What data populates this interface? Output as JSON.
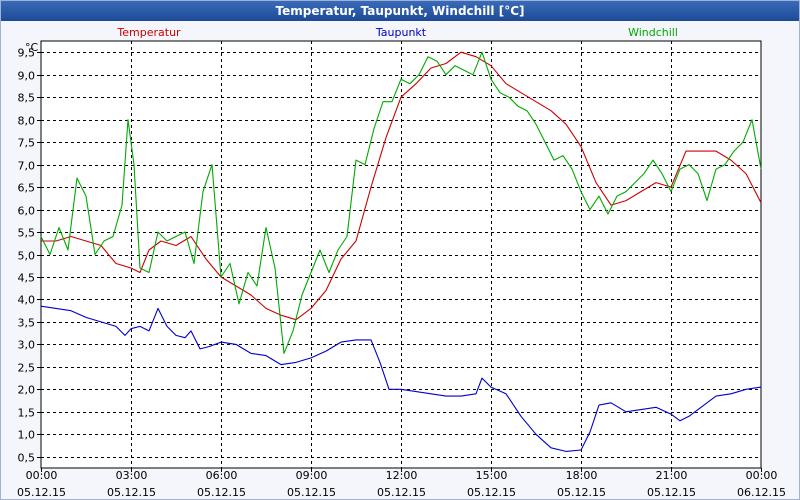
{
  "chart_data": {
    "type": "line",
    "title": "Temperatur, Taupunkt, Windchill [°C]",
    "ylabel": "°C",
    "ylim": [
      0.25,
      9.75
    ],
    "yticks": [
      0.5,
      1.0,
      1.5,
      2.0,
      2.5,
      3.0,
      3.5,
      4.0,
      4.5,
      5.0,
      5.5,
      6.0,
      6.5,
      7.0,
      7.5,
      8.0,
      8.5,
      9.0,
      9.5
    ],
    "ytick_labels": [
      "0,5",
      "1,0",
      "1,5",
      "2,0",
      "2,5",
      "3,0",
      "3,5",
      "4,0",
      "4,5",
      "5,0",
      "5,5",
      "6,0",
      "6,5",
      "7,0",
      "7,5",
      "8,0",
      "8,5",
      "9,0",
      "9,5"
    ],
    "xlim": [
      0,
      24
    ],
    "xticks": [
      0,
      3,
      6,
      9,
      12,
      15,
      18,
      21,
      24
    ],
    "xtick_labels": [
      {
        "time": "00:00",
        "date": "05.12.15"
      },
      {
        "time": "03:00",
        "date": "05.12.15"
      },
      {
        "time": "06:00",
        "date": "05.12.15"
      },
      {
        "time": "09:00",
        "date": "05.12.15"
      },
      {
        "time": "12:00",
        "date": "05.12.15"
      },
      {
        "time": "15:00",
        "date": "05.12.15"
      },
      {
        "time": "18:00",
        "date": "05.12.15"
      },
      {
        "time": "21:00",
        "date": "05.12.15"
      },
      {
        "time": "00:00",
        "date": "06.12.15"
      }
    ],
    "grid": true,
    "x_unit": "hours since 05.12.15 00:00",
    "series": [
      {
        "name": "Temperatur",
        "color": "#cc0000",
        "x": [
          0,
          0.5,
          1,
          1.5,
          2,
          2.5,
          3,
          3.3,
          3.6,
          4,
          4.5,
          5,
          5.5,
          6,
          6.5,
          7,
          7.5,
          8,
          8.5,
          9,
          9.5,
          10,
          10.5,
          11,
          11.5,
          12,
          12.5,
          13,
          13.5,
          14,
          14.5,
          15,
          15.5,
          16,
          16.5,
          17,
          17.5,
          18,
          18.5,
          19,
          19.5,
          20,
          20.5,
          21,
          21.5,
          22,
          22.5,
          23,
          23.5,
          24
        ],
        "values": [
          5.3,
          5.3,
          5.4,
          5.3,
          5.2,
          4.8,
          4.7,
          4.6,
          5.1,
          5.3,
          5.2,
          5.4,
          4.9,
          4.5,
          4.3,
          4.1,
          3.8,
          3.65,
          3.55,
          3.8,
          4.2,
          4.9,
          5.3,
          6.5,
          7.6,
          8.5,
          8.8,
          9.15,
          9.25,
          9.5,
          9.4,
          9.2,
          8.8,
          8.6,
          8.4,
          8.2,
          7.9,
          7.4,
          6.6,
          6.1,
          6.2,
          6.4,
          6.6,
          6.5,
          7.3,
          7.3,
          7.3,
          7.1,
          6.8,
          6.15
        ]
      },
      {
        "name": "Taupunkt",
        "color": "#0000cc",
        "x": [
          0,
          0.5,
          1,
          1.5,
          2,
          2.5,
          2.8,
          3,
          3.3,
          3.6,
          3.9,
          4.2,
          4.5,
          4.8,
          5,
          5.3,
          5.6,
          6,
          6.5,
          7,
          7.5,
          8,
          8.5,
          9,
          9.5,
          10,
          10.5,
          11,
          11.3,
          11.6,
          12,
          12.5,
          13,
          13.5,
          14,
          14.5,
          14.7,
          15,
          15.5,
          16,
          16.5,
          17,
          17.5,
          18,
          18.3,
          18.6,
          19,
          19.5,
          20,
          20.5,
          21,
          21.3,
          21.6,
          22,
          22.5,
          23,
          23.5,
          24
        ],
        "values": [
          3.85,
          3.8,
          3.75,
          3.6,
          3.5,
          3.4,
          3.2,
          3.35,
          3.4,
          3.3,
          3.8,
          3.4,
          3.2,
          3.15,
          3.3,
          2.9,
          2.95,
          3.05,
          3.0,
          2.8,
          2.75,
          2.55,
          2.6,
          2.7,
          2.85,
          3.05,
          3.1,
          3.1,
          2.6,
          2.0,
          2.0,
          1.95,
          1.9,
          1.85,
          1.85,
          1.9,
          2.25,
          2.05,
          1.9,
          1.4,
          1.0,
          0.7,
          0.62,
          0.65,
          1.05,
          1.65,
          1.7,
          1.5,
          1.55,
          1.6,
          1.45,
          1.3,
          1.4,
          1.6,
          1.85,
          1.9,
          2.0,
          2.05
        ]
      },
      {
        "name": "Windchill",
        "color": "#00aa00",
        "x": [
          0,
          0.3,
          0.6,
          0.9,
          1.2,
          1.5,
          1.8,
          2.1,
          2.4,
          2.7,
          2.9,
          3.1,
          3.3,
          3.6,
          3.9,
          4.2,
          4.5,
          4.8,
          5.1,
          5.4,
          5.7,
          6,
          6.3,
          6.6,
          6.9,
          7.2,
          7.5,
          7.8,
          8.1,
          8.4,
          8.7,
          9,
          9.3,
          9.6,
          9.9,
          10.2,
          10.5,
          10.8,
          11.1,
          11.4,
          11.7,
          12,
          12.3,
          12.6,
          12.9,
          13.2,
          13.5,
          13.8,
          14.1,
          14.4,
          14.7,
          15,
          15.3,
          15.6,
          15.9,
          16.2,
          16.5,
          16.8,
          17.1,
          17.4,
          17.7,
          18,
          18.3,
          18.6,
          18.9,
          19.2,
          19.5,
          19.8,
          20.1,
          20.4,
          20.7,
          21,
          21.3,
          21.6,
          21.9,
          22.2,
          22.5,
          22.8,
          23.1,
          23.4,
          23.7,
          24
        ],
        "values": [
          5.4,
          5.0,
          5.6,
          5.1,
          6.7,
          6.3,
          5.0,
          5.3,
          5.4,
          6.1,
          8.0,
          7.0,
          4.7,
          4.6,
          5.5,
          5.3,
          5.4,
          5.5,
          4.8,
          6.4,
          7.0,
          4.5,
          4.8,
          3.9,
          4.6,
          4.3,
          5.6,
          4.7,
          2.8,
          3.3,
          4.1,
          4.6,
          5.1,
          4.6,
          5.1,
          5.4,
          7.1,
          7.0,
          7.8,
          8.4,
          8.4,
          8.9,
          8.8,
          9.0,
          9.4,
          9.3,
          9.0,
          9.2,
          9.1,
          9.0,
          9.5,
          8.9,
          8.6,
          8.5,
          8.3,
          8.2,
          7.9,
          7.5,
          7.1,
          7.2,
          6.9,
          6.4,
          6.0,
          6.3,
          5.9,
          6.3,
          6.4,
          6.6,
          6.8,
          7.1,
          6.8,
          6.4,
          6.9,
          7.0,
          6.8,
          6.2,
          6.9,
          7.0,
          7.3,
          7.5,
          8.0,
          6.9
        ]
      }
    ]
  }
}
